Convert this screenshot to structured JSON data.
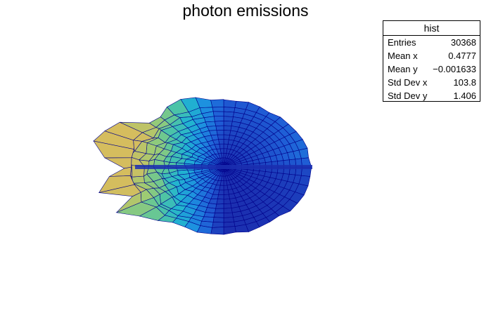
{
  "chart_data": {
    "type": "surface",
    "title": "photon emissions",
    "colors": {
      "palette": [
        "#1b2fb0",
        "#1f5ed6",
        "#1d8fe0",
        "#22b5cf",
        "#54c6a0",
        "#9ecb73",
        "#d5bd5e"
      ],
      "mesh_line": "#00008b"
    },
    "stats_box": {
      "title": "hist",
      "rows": [
        {
          "label": "Entries",
          "value": "30368"
        },
        {
          "label": "Mean x",
          "value": "0.4777"
        },
        {
          "label": "Mean y",
          "value": "−0.001633"
        },
        {
          "label": "Std Dev x",
          "value": "103.8"
        },
        {
          "label": "Std Dev y",
          "value": "1.406"
        }
      ]
    }
  }
}
